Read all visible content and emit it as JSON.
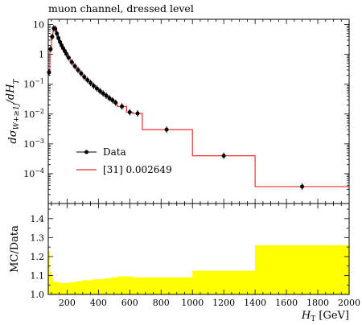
{
  "chart_data": [
    {
      "type": "line",
      "title": "muon channel, dressed level",
      "xlabel": "H_T [GeV]",
      "ylabel": "dσ_{W+≥1j}/dH_T",
      "xlim": [
        80,
        2000
      ],
      "ylim": [
        1e-05,
        15
      ],
      "yscale": "log",
      "ytick_labels": [
        "10",
        "1",
        "10^-1",
        "10^-2",
        "10^-3",
        "10^-4"
      ],
      "legend_position": "middle-left",
      "series": [
        {
          "name": "Data",
          "style": "markers-with-errorbars",
          "color": "#000000",
          "x": [
            85,
            95,
            105,
            115,
            125,
            135,
            145,
            155,
            165,
            175,
            185,
            195,
            210,
            230,
            250,
            270,
            290,
            310,
            330,
            350,
            370,
            390,
            410,
            430,
            450,
            470,
            490,
            510,
            550,
            600,
            650,
            835,
            1200,
            1700
          ],
          "y": [
            0.25,
            1.5,
            3.9,
            7.5,
            7.2,
            5.0,
            3.5,
            2.6,
            2.0,
            1.6,
            1.3,
            1.05,
            0.78,
            0.55,
            0.4,
            0.3,
            0.23,
            0.175,
            0.138,
            0.11,
            0.088,
            0.072,
            0.059,
            0.049,
            0.041,
            0.034,
            0.029,
            0.024,
            0.018,
            0.0115,
            0.0105,
            0.003,
            0.0004,
            3.7e-05
          ]
        },
        {
          "name": "[31] 0.002649",
          "style": "histogram-step",
          "color": "#e8312f",
          "bin_edges": [
            80,
            90,
            100,
            110,
            120,
            130,
            140,
            150,
            160,
            170,
            180,
            190,
            200,
            220,
            240,
            260,
            280,
            300,
            320,
            340,
            360,
            380,
            400,
            420,
            440,
            460,
            480,
            500,
            520,
            580,
            620,
            680,
            1000,
            1400,
            2000
          ],
          "values": [
            0.25,
            1.5,
            3.9,
            7.5,
            7.2,
            5.0,
            3.5,
            2.6,
            2.0,
            1.6,
            1.3,
            1.05,
            0.78,
            0.55,
            0.4,
            0.3,
            0.23,
            0.175,
            0.138,
            0.11,
            0.088,
            0.072,
            0.059,
            0.049,
            0.041,
            0.034,
            0.029,
            0.024,
            0.018,
            0.0115,
            0.0105,
            0.003,
            0.0004,
            3.7e-05
          ]
        }
      ]
    },
    {
      "type": "area",
      "ylabel": "MC/Data",
      "xlabel": "H_T [GeV]",
      "xlim": [
        80,
        2000
      ],
      "ylim": [
        1.0,
        1.48
      ],
      "xtick_labels": [
        "200",
        "400",
        "600",
        "800",
        "1000",
        "1200",
        "1400",
        "1600",
        "1800",
        "2000"
      ],
      "ytick_labels": [
        "1.0",
        "1.1",
        "1.2",
        "1.3",
        "1.4"
      ],
      "band_color": "#ffff00",
      "series": [
        {
          "name": "",
          "bin_edges": [
            80,
            90,
            100,
            110,
            120,
            130,
            140,
            150,
            160,
            170,
            180,
            190,
            200,
            220,
            240,
            260,
            280,
            300,
            320,
            340,
            360,
            380,
            400,
            420,
            440,
            460,
            480,
            500,
            520,
            580,
            620,
            680,
            1000,
            1400,
            2000
          ],
          "upper": [
            1.23,
            1.12,
            1.09,
            1.07,
            1.065,
            1.065,
            1.065,
            1.06,
            1.06,
            1.06,
            1.06,
            1.06,
            1.06,
            1.065,
            1.065,
            1.07,
            1.07,
            1.075,
            1.075,
            1.075,
            1.08,
            1.08,
            1.08,
            1.08,
            1.085,
            1.085,
            1.09,
            1.09,
            1.095,
            1.095,
            1.09,
            1.09,
            1.125,
            1.26
          ],
          "lower": [
            1.0,
            1.0,
            1.0,
            1.0,
            1.0,
            1.0,
            1.0,
            1.0,
            1.0,
            1.0,
            1.0,
            1.0,
            1.0,
            1.0,
            1.0,
            1.0,
            1.0,
            1.0,
            1.0,
            1.0,
            1.0,
            1.0,
            1.0,
            1.0,
            1.0,
            1.0,
            1.0,
            1.0,
            1.0,
            1.0,
            1.0,
            1.0,
            1.0,
            1.0
          ]
        }
      ]
    }
  ]
}
